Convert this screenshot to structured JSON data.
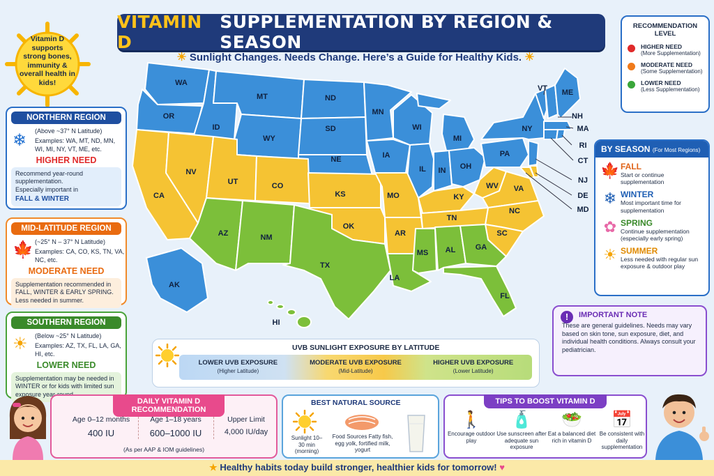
{
  "title": {
    "part1": "VITAMIN D",
    "part2": "SUPPLEMENTATION BY REGION & SEASON"
  },
  "subtitle": "Sunlight Changes. Needs Change. Here’s a Guide for Healthy Kids.",
  "sun_callout": "Vitamin D supports strong bones, immunity & overall health in kids!",
  "regions": {
    "northern": {
      "title": "NORTHERN REGION",
      "latitude": "(Above ~37° N Latitude)",
      "examples": "Examples: WA, MT, ND, MN, WI, MI, NY, VT, ME, etc.",
      "need": "HIGHER NEED",
      "desc1": "Recommend year-round supplementation.",
      "desc2": "Especially important in",
      "desc3": "FALL & WINTER"
    },
    "mid": {
      "title": "MID-LATITUDE REGION",
      "latitude": "(~25° N – 37° N Latitude)",
      "examples": "Examples: CA, CO, KS, TN, VA, NC, etc.",
      "need": "MODERATE NEED",
      "desc": "Supplementation recommended in FALL, WINTER & EARLY SPRING. Less needed in summer."
    },
    "southern": {
      "title": "SOUTHERN REGION",
      "latitude": "(Below ~25° N Latitude)",
      "examples": "Examples: AZ, TX, FL, LA, GA, HI, etc.",
      "need": "LOWER NEED",
      "desc": "Supplementation may be needed in WINTER or for kids with limited sun exposure year-round."
    }
  },
  "legend": {
    "title": "RECOMMENDATION LEVEL",
    "items": [
      {
        "label": "HIGHER NEED",
        "desc": "(More Supplementation)",
        "color": "#e02a2a"
      },
      {
        "label": "MODERATE NEED",
        "desc": "(Some Supplementation)",
        "color": "#f07a1a"
      },
      {
        "label": "LOWER NEED",
        "desc": "(Less Supplementation)",
        "color": "#3aa63a"
      }
    ]
  },
  "season": {
    "title": "BY SEASON",
    "title_note": "(For Most Regions)",
    "items": [
      {
        "name": "FALL",
        "desc": "Start or continue supplementation",
        "color": "#e0641a",
        "icon": "maple-leaf-icon"
      },
      {
        "name": "WINTER",
        "desc": "Most important time for supplementation",
        "color": "#1f5fb4",
        "icon": "snowflake-icon"
      },
      {
        "name": "SPRING",
        "desc": "Continue supplementation (especially early spring)",
        "color": "#3a8a2a",
        "icon": "flower-icon"
      },
      {
        "name": "SUMMER",
        "desc": "Less needed with regular sun exposure & outdoor play",
        "color": "#e08a00",
        "icon": "sun-icon"
      }
    ]
  },
  "note": {
    "title": "IMPORTANT NOTE",
    "body": "These are general guidelines. Needs may vary based on skin tone, sun exposure, diet, and individual health conditions. Always consult your pediatrician."
  },
  "uvb": {
    "title": "UVB SUNLIGHT EXPOSURE BY LATITUDE",
    "segments": [
      {
        "label": "LOWER UVB EXPOSURE",
        "sub": "(Higher Latitude)"
      },
      {
        "label": "MODERATE UVB EXPOSURE",
        "sub": "(Mid-Latitude)"
      },
      {
        "label": "HIGHER UVB EXPOSURE",
        "sub": "(Lower Latitude)"
      }
    ]
  },
  "daily": {
    "title": "DAILY VITAMIN D RECOMMENDATION",
    "cols": [
      {
        "label": "Age 0–12 months",
        "value": "400 IU"
      },
      {
        "label": "Age 1–18 years",
        "value": "600–1000 IU"
      },
      {
        "label": "Upper Limit",
        "value": "4,000 IU/day"
      }
    ],
    "footnote": "(As per AAP & IOM guidelines)"
  },
  "natural": {
    "title": "BEST NATURAL SOURCE",
    "sunlight": "Sunlight 10–30 min (morning)",
    "food": "Food Sources Fatty fish, egg yolk, fortified milk, yogurt"
  },
  "tips": {
    "title": "TIPS TO BOOST VITAMIN D",
    "items": [
      {
        "text": "Encourage outdoor play",
        "icon": "outdoor-play-icon"
      },
      {
        "text": "Use sunscreen after adequate sun exposure",
        "icon": "sunscreen-icon"
      },
      {
        "text": "Eat a balanced diet rich in vitamin D",
        "icon": "balanced-diet-icon"
      },
      {
        "text": "Be consistent with daily supplementation",
        "icon": "calendar-icon"
      }
    ]
  },
  "footer": "Healthy habits today build stronger, healthier kids for tomorrow!",
  "map": {
    "colors": {
      "blue": "#3b8fd9",
      "yellow": "#f5c333",
      "green": "#7cbf3a"
    },
    "labels": [
      "WA",
      "OR",
      "ID",
      "MT",
      "WY",
      "ND",
      "SD",
      "NE",
      "MN",
      "IA",
      "WI",
      "MI",
      "IL",
      "IN",
      "OH",
      "PA",
      "NY",
      "VT",
      "ME",
      "NH",
      "MA",
      "RI",
      "CT",
      "NJ",
      "DE",
      "MD",
      "CA",
      "NV",
      "UT",
      "CO",
      "KS",
      "MO",
      "KY",
      "WV",
      "VA",
      "NC",
      "TN",
      "OK",
      "AR",
      "SC",
      "AZ",
      "NM",
      "TX",
      "LA",
      "MS",
      "AL",
      "GA",
      "FL",
      "AK",
      "HI"
    ]
  }
}
